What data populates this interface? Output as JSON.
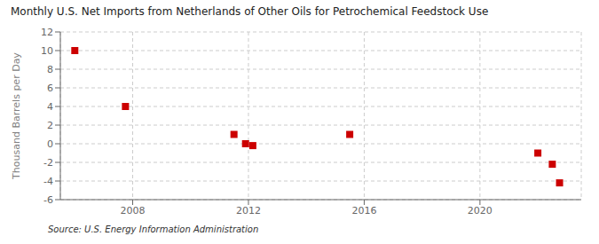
{
  "chart_data": {
    "type": "scatter",
    "title": "Monthly U.S. Net Imports from Netherlands of Other Oils for Petrochemical Feedstock Use",
    "ylabel": "Thousand Barrels per Day",
    "annotations": [
      "Source: U.S. Energy Information Administration"
    ],
    "x": [
      2006.0,
      2007.75,
      2011.5,
      2011.9,
      2012.15,
      2015.5,
      2022.0,
      2022.5,
      2022.75
    ],
    "values": [
      10.0,
      4.0,
      1.0,
      0.0,
      -0.2,
      1.0,
      -1.0,
      -2.2,
      -4.2
    ],
    "color": "#cc0000",
    "marker": "square",
    "xlim": [
      2005.5,
      2023.5
    ],
    "ylim": [
      -6,
      12
    ],
    "xticks": [
      2008,
      2012,
      2016,
      2020
    ],
    "yticks": [
      -6,
      -4,
      -2,
      0,
      2,
      4,
      6,
      8,
      10,
      12
    ],
    "grid": true
  }
}
